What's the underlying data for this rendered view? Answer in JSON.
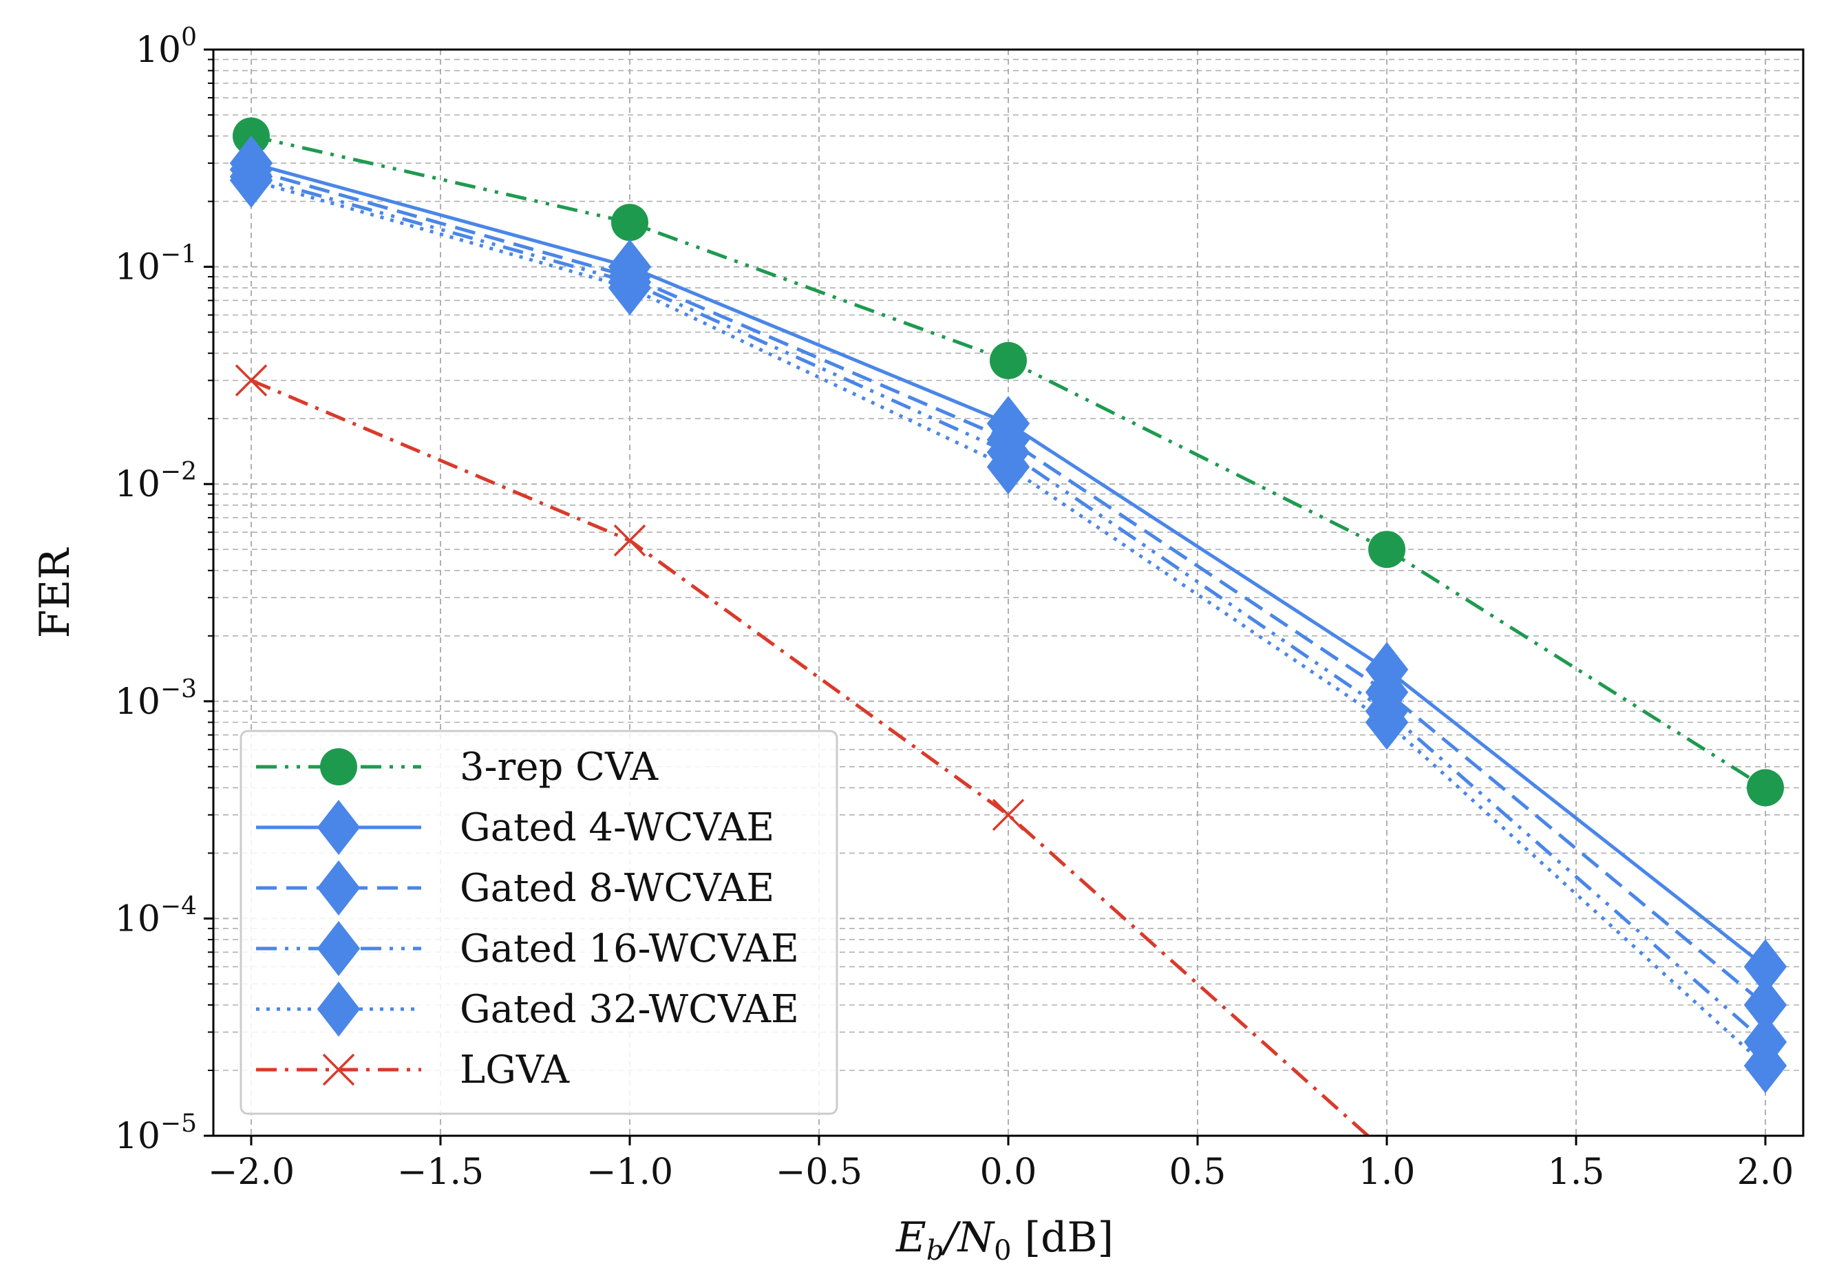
{
  "chart_data": {
    "type": "line",
    "title": "",
    "xlabel": "E_b/N_0 [dB]",
    "xlabel_parts": {
      "E": "E",
      "b": "b",
      "slash": "/N",
      "zero": "0",
      "unit": " [dB]"
    },
    "ylabel": "FER",
    "xlim": [
      -2.1,
      2.1
    ],
    "ylim": [
      1e-05,
      1
    ],
    "yscale": "log",
    "grid": true,
    "legend_position": "lower-left",
    "x_ticks": [
      "−2.0",
      "−1.5",
      "−1.0",
      "−0.5",
      "0.0",
      "0.5",
      "1.0",
      "1.5",
      "2.0"
    ],
    "x_tick_values": [
      -2.0,
      -1.5,
      -1.0,
      -0.5,
      0.0,
      0.5,
      1.0,
      1.5,
      2.0
    ],
    "y_ticks": [
      {
        "base": "10",
        "exp": "0"
      },
      {
        "base": "10",
        "exp": "−1"
      },
      {
        "base": "10",
        "exp": "−2"
      },
      {
        "base": "10",
        "exp": "−3"
      },
      {
        "base": "10",
        "exp": "−4"
      },
      {
        "base": "10",
        "exp": "−5"
      }
    ],
    "y_tick_exponents": [
      0,
      -1,
      -2,
      -3,
      -4,
      -5
    ],
    "series": [
      {
        "name": "3-rep CVA",
        "color": "#1e9a4f",
        "dash": "dashdotdot",
        "marker": "circle",
        "x": [
          -2,
          -1,
          0,
          1,
          2
        ],
        "y": [
          0.4,
          0.16,
          0.037,
          0.005,
          0.0004
        ]
      },
      {
        "name": "Gated 4-WCVAE",
        "color": "#4a86e8",
        "dash": "solid",
        "marker": "diamond",
        "x": [
          -2,
          -1,
          0,
          1,
          2
        ],
        "y": [
          0.3,
          0.1,
          0.019,
          0.0014,
          6e-05
        ]
      },
      {
        "name": "Gated 8-WCVAE",
        "color": "#4a86e8",
        "dash": "dashed",
        "marker": "diamond",
        "x": [
          -2,
          -1,
          0,
          1,
          2
        ],
        "y": [
          0.28,
          0.09,
          0.016,
          0.0011,
          4e-05
        ]
      },
      {
        "name": "Gated 16-WCVAE",
        "color": "#4a86e8",
        "dash": "dashdotdot",
        "marker": "diamond",
        "x": [
          -2,
          -1,
          0,
          1,
          2
        ],
        "y": [
          0.26,
          0.085,
          0.014,
          0.0009,
          2.7e-05
        ]
      },
      {
        "name": "Gated 32-WCVAE",
        "color": "#4a86e8",
        "dash": "dotted",
        "marker": "diamond",
        "x": [
          -2,
          -1,
          0,
          1,
          2
        ],
        "y": [
          0.25,
          0.08,
          0.012,
          0.0008,
          2.1e-05
        ]
      },
      {
        "name": "LGVA",
        "color": "#d93a2b",
        "dash": "dashdot",
        "marker": "x",
        "x": [
          -2,
          -1,
          0,
          0.5,
          0.95
        ],
        "y": [
          0.03,
          0.0055,
          0.0003,
          5e-05,
          1e-05
        ]
      }
    ]
  }
}
